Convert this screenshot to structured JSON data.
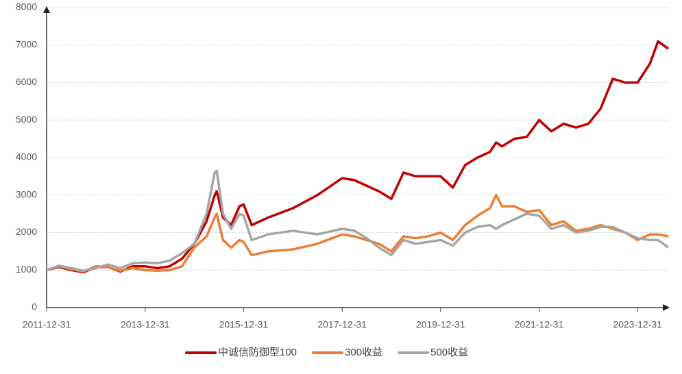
{
  "chart_data": {
    "type": "line",
    "x": [
      "2011-12-31",
      "2012-03-31",
      "2012-06-30",
      "2012-09-30",
      "2012-12-31",
      "2013-03-31",
      "2013-06-30",
      "2013-09-30",
      "2013-12-31",
      "2014-03-31",
      "2014-06-30",
      "2014-09-30",
      "2014-12-31",
      "2015-03-31",
      "2015-05-31",
      "2015-06-15",
      "2015-07-31",
      "2015-09-30",
      "2015-11-30",
      "2015-12-31",
      "2016-02-29",
      "2016-06-30",
      "2016-12-31",
      "2017-06-30",
      "2017-12-31",
      "2018-03-31",
      "2018-06-30",
      "2018-09-30",
      "2018-12-31",
      "2019-03-31",
      "2019-06-30",
      "2019-09-30",
      "2019-12-31",
      "2020-03-31",
      "2020-06-30",
      "2020-09-30",
      "2020-12-31",
      "2021-02-15",
      "2021-03-31",
      "2021-06-30",
      "2021-09-30",
      "2021-12-31",
      "2022-03-31",
      "2022-06-30",
      "2022-09-30",
      "2022-12-31",
      "2023-03-31",
      "2023-06-30",
      "2023-09-30",
      "2023-12-31",
      "2024-03-31",
      "2024-05-31",
      "2024-08-15"
    ],
    "series": [
      {
        "name": "中诚信防御型100",
        "color": "#c00000",
        "values": [
          1000,
          1080,
          1000,
          940,
          1080,
          1080,
          960,
          1100,
          1100,
          1050,
          1100,
          1300,
          1700,
          2300,
          3000,
          3100,
          2400,
          2200,
          2700,
          2750,
          2200,
          2400,
          2650,
          3000,
          3450,
          3400,
          3250,
          3100,
          2900,
          3600,
          3500,
          3500,
          3500,
          3200,
          3800,
          4000,
          4150,
          4400,
          4300,
          4500,
          4550,
          5000,
          4700,
          4900,
          4800,
          4900,
          5300,
          6100,
          6000,
          6000,
          6500,
          7100,
          6900
        ]
      },
      {
        "name": "300收益",
        "color": "#ed7d31",
        "values": [
          1000,
          1100,
          1020,
          960,
          1100,
          1080,
          980,
          1050,
          1000,
          980,
          1000,
          1100,
          1600,
          1900,
          2400,
          2500,
          1800,
          1600,
          1800,
          1750,
          1400,
          1500,
          1550,
          1700,
          1950,
          1900,
          1800,
          1700,
          1500,
          1900,
          1850,
          1900,
          2000,
          1800,
          2200,
          2450,
          2650,
          3000,
          2700,
          2700,
          2550,
          2600,
          2200,
          2300,
          2050,
          2100,
          2200,
          2100,
          2000,
          1800,
          1950,
          1950,
          1900
        ]
      },
      {
        "name": "500收益",
        "color": "#a5a5a5",
        "values": [
          1000,
          1120,
          1050,
          980,
          1050,
          1150,
          1050,
          1180,
          1200,
          1180,
          1250,
          1450,
          1700,
          2500,
          3600,
          3650,
          2500,
          2100,
          2500,
          2450,
          1800,
          1950,
          2050,
          1950,
          2100,
          2050,
          1850,
          1600,
          1400,
          1800,
          1700,
          1750,
          1800,
          1650,
          2000,
          2150,
          2200,
          2100,
          2200,
          2350,
          2500,
          2450,
          2100,
          2200,
          2000,
          2050,
          2150,
          2150,
          2000,
          1850,
          1800,
          1800,
          1600
        ]
      }
    ],
    "xlim": [
      "2011-12-31",
      "2024-08-15"
    ],
    "xticks": [
      "2011-12-31",
      "2013-12-31",
      "2015-12-31",
      "2017-12-31",
      "2019-12-31",
      "2021-12-31",
      "2023-12-31"
    ],
    "ylim": [
      0,
      8000
    ],
    "yticks": [
      0,
      1000,
      2000,
      3000,
      4000,
      5000,
      6000,
      7000,
      8000
    ],
    "grid": true,
    "legend": "bottom"
  }
}
